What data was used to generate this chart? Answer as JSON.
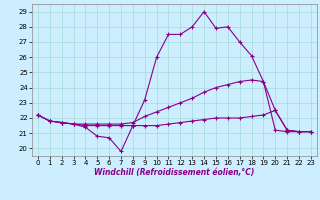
{
  "xlabel": "Windchill (Refroidissement éolien,°C)",
  "background_color": "#cceeff",
  "grid_color": "#aadddd",
  "line_color": "#880088",
  "xlim": [
    -0.5,
    23.5
  ],
  "ylim": [
    19.5,
    29.5
  ],
  "yticks": [
    20,
    21,
    22,
    23,
    24,
    25,
    26,
    27,
    28,
    29
  ],
  "xticks": [
    0,
    1,
    2,
    3,
    4,
    5,
    6,
    7,
    8,
    9,
    10,
    11,
    12,
    13,
    14,
    15,
    16,
    17,
    18,
    19,
    20,
    21,
    22,
    23
  ],
  "series": [
    {
      "x": [
        0,
        1,
        2,
        3,
        4,
        5,
        6,
        7,
        8,
        9,
        10,
        11,
        12,
        13,
        14,
        15,
        16,
        17,
        18,
        19,
        20,
        21,
        22,
        23
      ],
      "y": [
        22.2,
        21.8,
        21.7,
        21.6,
        21.4,
        20.8,
        20.7,
        19.8,
        21.5,
        23.2,
        26.0,
        27.5,
        27.5,
        28.0,
        29.0,
        27.9,
        28.0,
        27.0,
        26.1,
        24.4,
        22.5,
        21.2,
        21.1,
        21.1
      ]
    },
    {
      "x": [
        0,
        1,
        2,
        3,
        4,
        5,
        6,
        7,
        8,
        9,
        10,
        11,
        12,
        13,
        14,
        15,
        16,
        17,
        18,
        19,
        20,
        21,
        22,
        23
      ],
      "y": [
        22.2,
        21.8,
        21.7,
        21.6,
        21.6,
        21.6,
        21.6,
        21.6,
        21.7,
        22.1,
        22.4,
        22.7,
        23.0,
        23.3,
        23.7,
        24.0,
        24.2,
        24.4,
        24.5,
        24.4,
        21.2,
        21.1,
        21.1,
        21.1
      ]
    },
    {
      "x": [
        0,
        1,
        2,
        3,
        4,
        5,
        6,
        7,
        8,
        9,
        10,
        11,
        12,
        13,
        14,
        15,
        16,
        17,
        18,
        19,
        20,
        21,
        22,
        23
      ],
      "y": [
        22.2,
        21.8,
        21.7,
        21.6,
        21.5,
        21.5,
        21.5,
        21.5,
        21.5,
        21.5,
        21.5,
        21.6,
        21.7,
        21.8,
        21.9,
        22.0,
        22.0,
        22.0,
        22.1,
        22.2,
        22.5,
        21.2,
        21.1,
        21.1
      ]
    }
  ]
}
